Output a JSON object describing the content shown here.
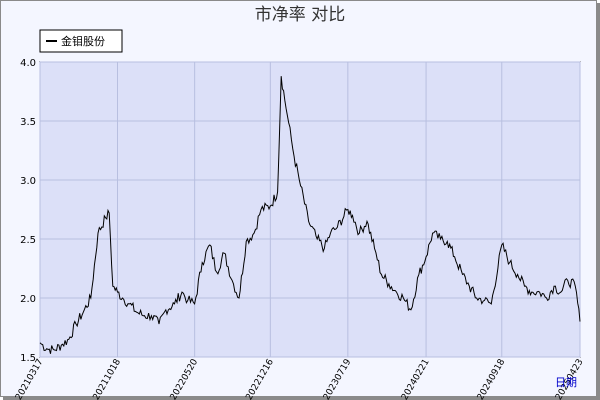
{
  "chart_data": {
    "type": "line",
    "title": "市净率  对比",
    "xlabel": "日期",
    "ylabel": "",
    "ylim": [
      1.5,
      4.0
    ],
    "yticks": [
      "1.5",
      "2.0",
      "2.5",
      "3.0",
      "3.5",
      "4.0"
    ],
    "xticks": [
      "20210317",
      "20211018",
      "20220520",
      "20221216",
      "20230719",
      "20240221",
      "20240918",
      "20250423"
    ],
    "legend_position": "top-left",
    "grid": true,
    "colors": {
      "plot_bg": "#dce0f8",
      "line": "#000000",
      "grid": "#b8bfe0",
      "frame_bg": "#f4f6ff"
    },
    "series": [
      {
        "name": "金钼股份",
        "x": [
          "20210317",
          "20210405",
          "20210425",
          "20210515",
          "20210605",
          "20210625",
          "20210715",
          "20210805",
          "20210825",
          "20210915",
          "20210925",
          "20211005",
          "20211018",
          "20211101",
          "20211120",
          "20211210",
          "20220101",
          "20220120",
          "20220210",
          "20220301",
          "20220325",
          "20220415",
          "20220501",
          "20220520",
          "20220610",
          "20220701",
          "20220720",
          "20220810",
          "20220901",
          "20220920",
          "20221010",
          "20221101",
          "20221120",
          "20221216",
          "20230105",
          "20230115",
          "20230201",
          "20230220",
          "20230310",
          "20230401",
          "20230425",
          "20230515",
          "20230601",
          "20230620",
          "20230719",
          "20230801",
          "20230820",
          "20230910",
          "20231001",
          "20231020",
          "20231110",
          "20231201",
          "20231220",
          "20240110",
          "20240201",
          "20240221",
          "20240310",
          "20240401",
          "20240420",
          "20240510",
          "20240601",
          "20240620",
          "20240710",
          "20240801",
          "20240820",
          "20240918",
          "20241010",
          "20241101",
          "20241120",
          "20241210",
          "20250101",
          "20250120",
          "20250210",
          "20250301",
          "20250320",
          "20250410",
          "20250423"
        ],
        "values": [
          1.62,
          1.57,
          1.56,
          1.6,
          1.65,
          1.78,
          1.88,
          2.0,
          2.55,
          2.68,
          2.72,
          2.1,
          2.05,
          2.0,
          1.95,
          1.88,
          1.85,
          1.85,
          1.78,
          1.9,
          1.95,
          2.05,
          1.98,
          1.95,
          2.3,
          2.45,
          2.22,
          2.38,
          2.15,
          2.0,
          2.48,
          2.55,
          2.75,
          2.78,
          2.9,
          3.88,
          3.55,
          3.2,
          2.95,
          2.65,
          2.5,
          2.42,
          2.55,
          2.6,
          2.75,
          2.7,
          2.55,
          2.65,
          2.42,
          2.2,
          2.12,
          2.05,
          2.0,
          1.9,
          2.2,
          2.35,
          2.55,
          2.5,
          2.48,
          2.35,
          2.2,
          2.1,
          2.0,
          1.98,
          1.95,
          2.45,
          2.3,
          2.2,
          2.1,
          2.05,
          2.05,
          2.0,
          2.1,
          2.05,
          2.15,
          2.1,
          1.8
        ]
      }
    ]
  }
}
